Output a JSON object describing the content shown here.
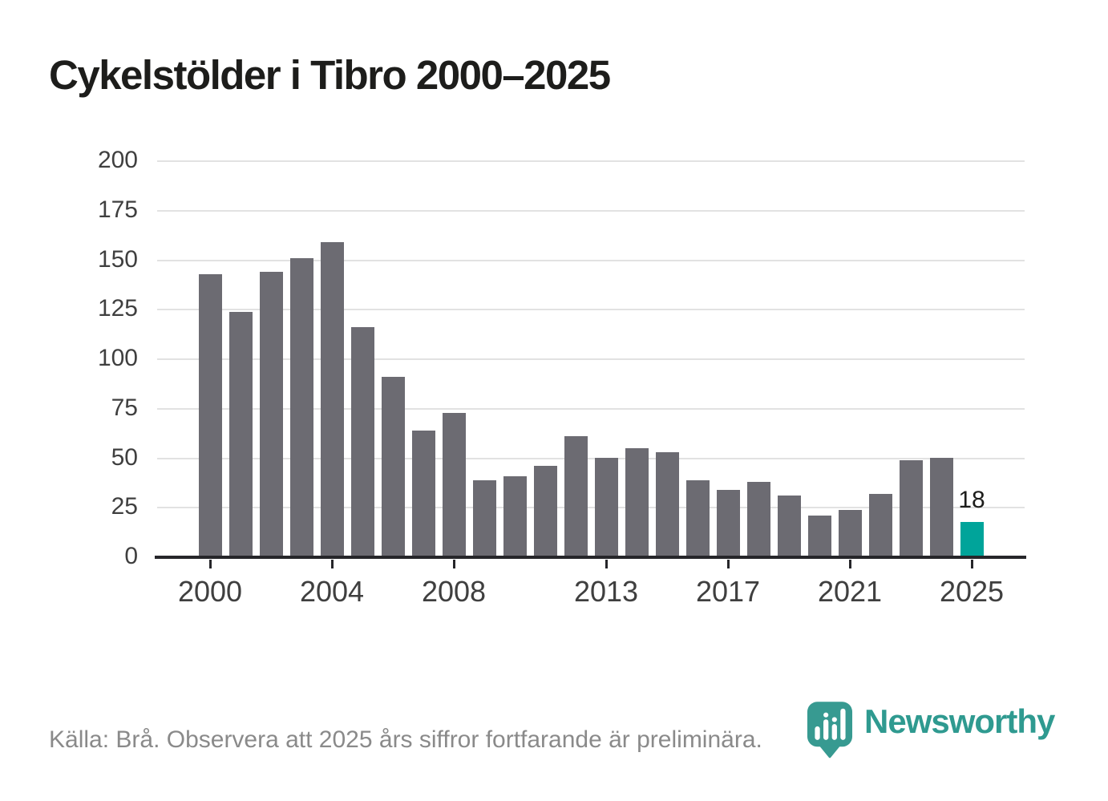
{
  "title": "Cykelstölder i Tibro 2000–2025",
  "footer": {
    "source_note": "Källa: Brå. Observera att 2025 års siffror fortfarande är preliminära."
  },
  "branding": {
    "logo_text": "Newsworthy",
    "logo_icon": "newsworthy-pin-bar-chart-icon",
    "logo_teal": "#2f9a90"
  },
  "colors": {
    "bar": "#6c6b72",
    "highlight": "#00a49a",
    "grid": "#e2e2e2",
    "axis": "#26262a",
    "tick_label": "#3f3f3f",
    "title_text": "#1d1d1b",
    "footer_text": "#8a8a8a"
  },
  "chart_data": {
    "type": "bar",
    "title": "Cykelstölder i Tibro 2000–2025",
    "xlabel": "",
    "ylabel": "",
    "categories": [
      2000,
      2001,
      2002,
      2003,
      2004,
      2005,
      2006,
      2007,
      2008,
      2009,
      2010,
      2011,
      2012,
      2013,
      2014,
      2015,
      2016,
      2017,
      2018,
      2019,
      2020,
      2021,
      2022,
      2023,
      2024,
      2025
    ],
    "values": [
      143,
      124,
      144,
      151,
      159,
      116,
      91,
      64,
      73,
      39,
      41,
      46,
      61,
      50,
      55,
      53,
      39,
      34,
      38,
      31,
      21,
      24,
      32,
      49,
      50,
      18
    ],
    "ylim": [
      0,
      200
    ],
    "y_ticks": [
      0,
      25,
      50,
      75,
      100,
      125,
      150,
      175,
      200
    ],
    "x_tick_years": [
      2000,
      2004,
      2008,
      2013,
      2017,
      2021,
      2025
    ],
    "x_tick_labels": [
      "2000",
      "2004",
      "2008",
      "2013",
      "2017",
      "2021",
      "2025"
    ],
    "grid": "horizontal",
    "legend": "none",
    "bar_color": "#6c6b72",
    "highlight_year": 2025,
    "highlight_color": "#00a49a",
    "highlight_label": "18"
  }
}
